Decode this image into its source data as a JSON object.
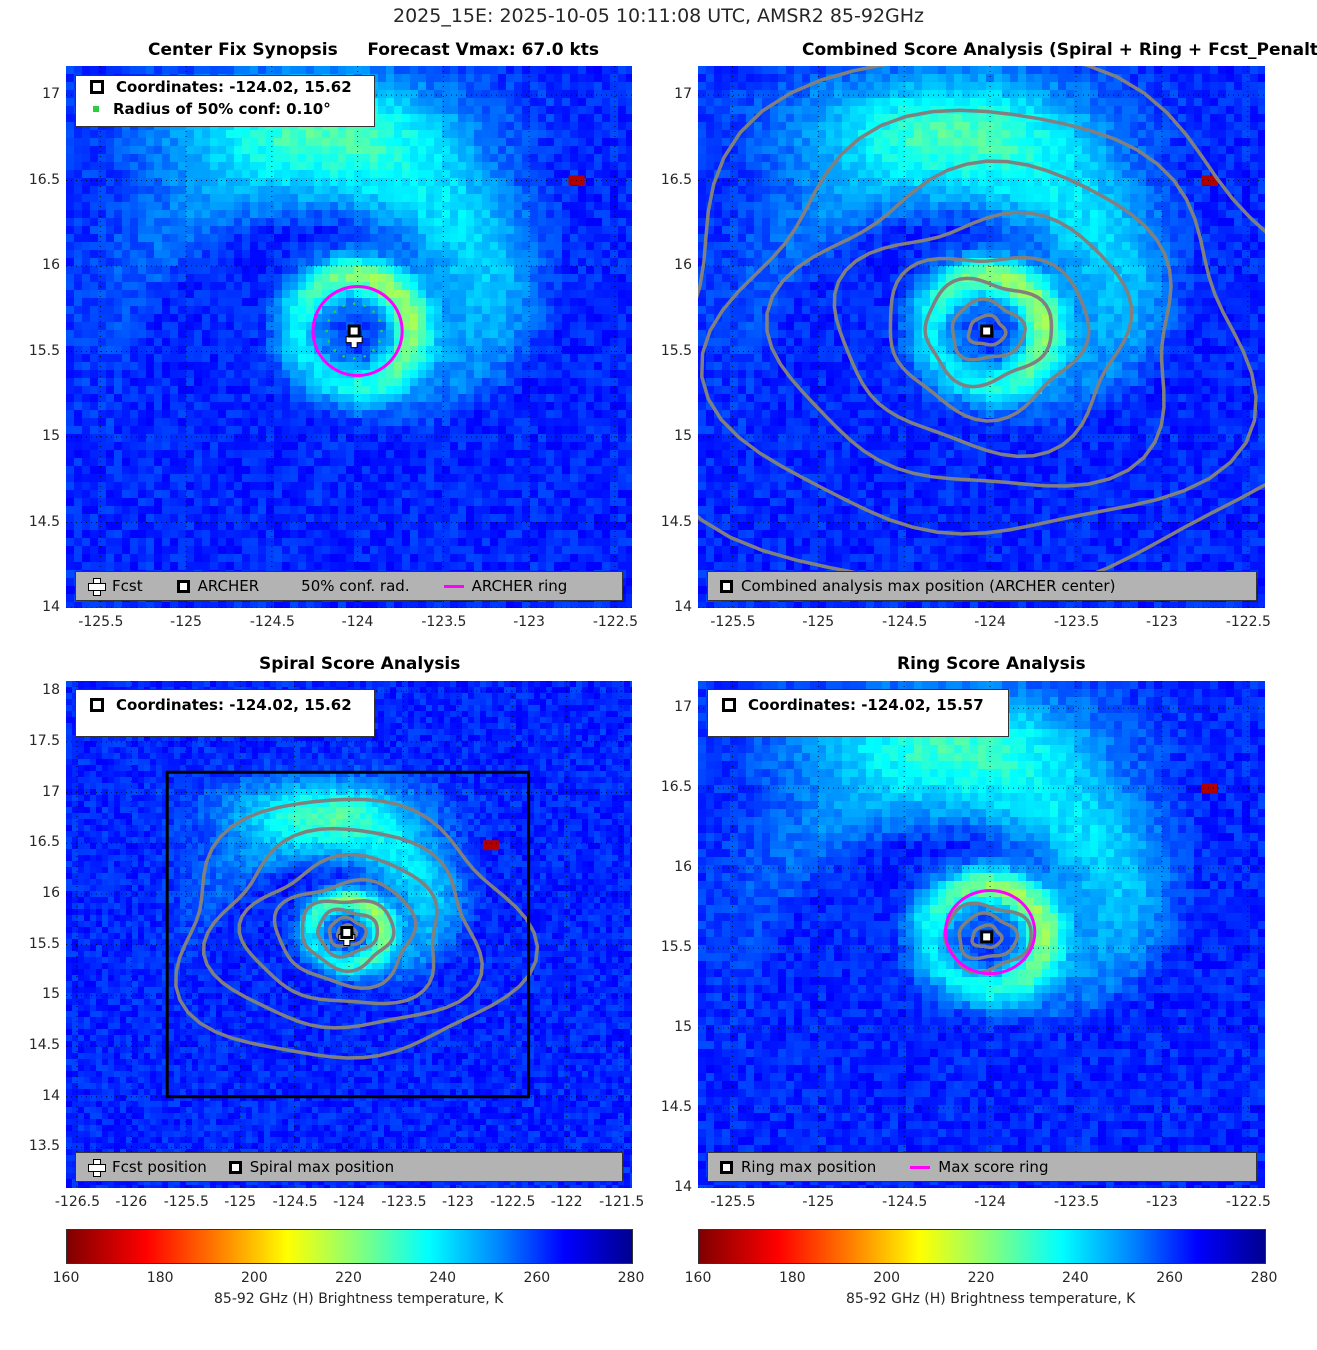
{
  "supertitle": "2025_15E: 2025-10-05 10:11:08 UTC, AMSR2 85-92GHz",
  "colors": {
    "accent_ring": "#ff00ff",
    "contour": "#808080",
    "conf_dots": "#2ecc40"
  },
  "chart_data": [
    {
      "type": "heatmap",
      "title": "Center Fix Synopsis     Forecast Vmax: 67.0 kts",
      "xlim": [
        -125.7,
        -122.4
      ],
      "ylim": [
        14.0,
        17.17
      ],
      "xticks": [
        -125.5,
        -125,
        -124.5,
        -124,
        -123.5,
        -123,
        -122.5
      ],
      "xtick_labels": [
        "-125.5",
        "-125",
        "-124.5",
        "-124",
        "-123.5",
        "-123",
        "-122.5"
      ],
      "yticks": [
        14,
        14.5,
        15,
        15.5,
        16,
        16.5,
        17
      ],
      "ytick_labels": [
        "14",
        "14.5",
        "15",
        "15.5",
        "16",
        "16.5",
        "17"
      ],
      "center": [
        -124.02,
        15.62
      ],
      "fcst_position": [
        -124.02,
        15.57
      ],
      "ring": {
        "center": [
          -124.0,
          15.62
        ],
        "radius_deg": 0.26
      },
      "conf_radius_deg": 0.1,
      "info": [
        "Coordinates: -124.02, 15.62",
        "Radius of 50% conf: 0.10°"
      ],
      "legend": [
        "Fcst",
        "ARCHER",
        "50% conf. rad.",
        "ARCHER ring"
      ]
    },
    {
      "type": "heatmap",
      "title": "Combined Score Analysis (Spiral + Ring + Fcst_Penalty)",
      "xlim": [
        -125.7,
        -122.4
      ],
      "ylim": [
        14.0,
        17.17
      ],
      "xticks": [
        -125.5,
        -125,
        -124.5,
        -124,
        -123.5,
        -123,
        -122.5
      ],
      "xtick_labels": [
        "-125.5",
        "-125",
        "-124.5",
        "-124",
        "-123.5",
        "-123",
        "-122.5"
      ],
      "yticks": [
        14,
        14.5,
        15,
        15.5,
        16,
        16.5,
        17
      ],
      "ytick_labels": [
        "14",
        "14.5",
        "15",
        "15.5",
        "16",
        "16.5",
        "17"
      ],
      "center": [
        -124.02,
        15.62
      ],
      "legend": [
        "Combined analysis max position (ARCHER center)"
      ]
    },
    {
      "type": "heatmap",
      "title": "Spiral Score Analysis",
      "xlim": [
        -126.6,
        -121.4
      ],
      "ylim": [
        13.1,
        18.1
      ],
      "xticks": [
        -126.5,
        -126,
        -125.5,
        -125,
        -124.5,
        -124,
        -123.5,
        -123,
        -122.5,
        -122,
        -121.5
      ],
      "xtick_labels": [
        "-126.5",
        "-126",
        "-125.5",
        "-125",
        "-124.5",
        "-124",
        "-123.5",
        "-123",
        "-122.5",
        "-122",
        "-121.5"
      ],
      "yticks": [
        13.5,
        14,
        14.5,
        15,
        15.5,
        16,
        16.5,
        17,
        17.5,
        18
      ],
      "ytick_labels": [
        "13.5",
        "14",
        "14.5",
        "15",
        "15.5",
        "16",
        "16.5",
        "17",
        "17.5",
        "18"
      ],
      "center": [
        -124.02,
        15.62
      ],
      "fcst_position": [
        -124.02,
        15.57
      ],
      "search_box": {
        "x": [
          -125.67,
          -122.35
        ],
        "y": [
          14.0,
          17.2
        ]
      },
      "info": [
        "Coordinates: -124.02, 15.62"
      ],
      "legend": [
        "Fcst position",
        "Spiral max position"
      ]
    },
    {
      "type": "heatmap",
      "title": "Ring Score Analysis",
      "xlim": [
        -125.7,
        -122.4
      ],
      "ylim": [
        14.0,
        17.17
      ],
      "xticks": [
        -125.5,
        -125,
        -124.5,
        -124,
        -123.5,
        -123,
        -122.5
      ],
      "xtick_labels": [
        "-125.5",
        "-125",
        "-124.5",
        "-124",
        "-123.5",
        "-123",
        "-122.5"
      ],
      "yticks": [
        14,
        14.5,
        15,
        15.5,
        16,
        16.5,
        17
      ],
      "ytick_labels": [
        "14",
        "14.5",
        "15",
        "15.5",
        "16",
        "16.5",
        "17"
      ],
      "center": [
        -124.02,
        15.57
      ],
      "ring": {
        "center": [
          -124.0,
          15.6
        ],
        "radius_deg": 0.26
      },
      "info": [
        "Coordinates: -124.02, 15.57"
      ],
      "legend": [
        "Ring max position",
        "Max score ring"
      ]
    }
  ],
  "colorbar": {
    "range": [
      160,
      280
    ],
    "ticks": [
      160,
      180,
      200,
      220,
      240,
      260,
      280
    ],
    "tick_labels": [
      "160",
      "180",
      "200",
      "220",
      "240",
      "260",
      "280"
    ],
    "label": "85-92 GHz (H) Brightness temperature, K"
  }
}
